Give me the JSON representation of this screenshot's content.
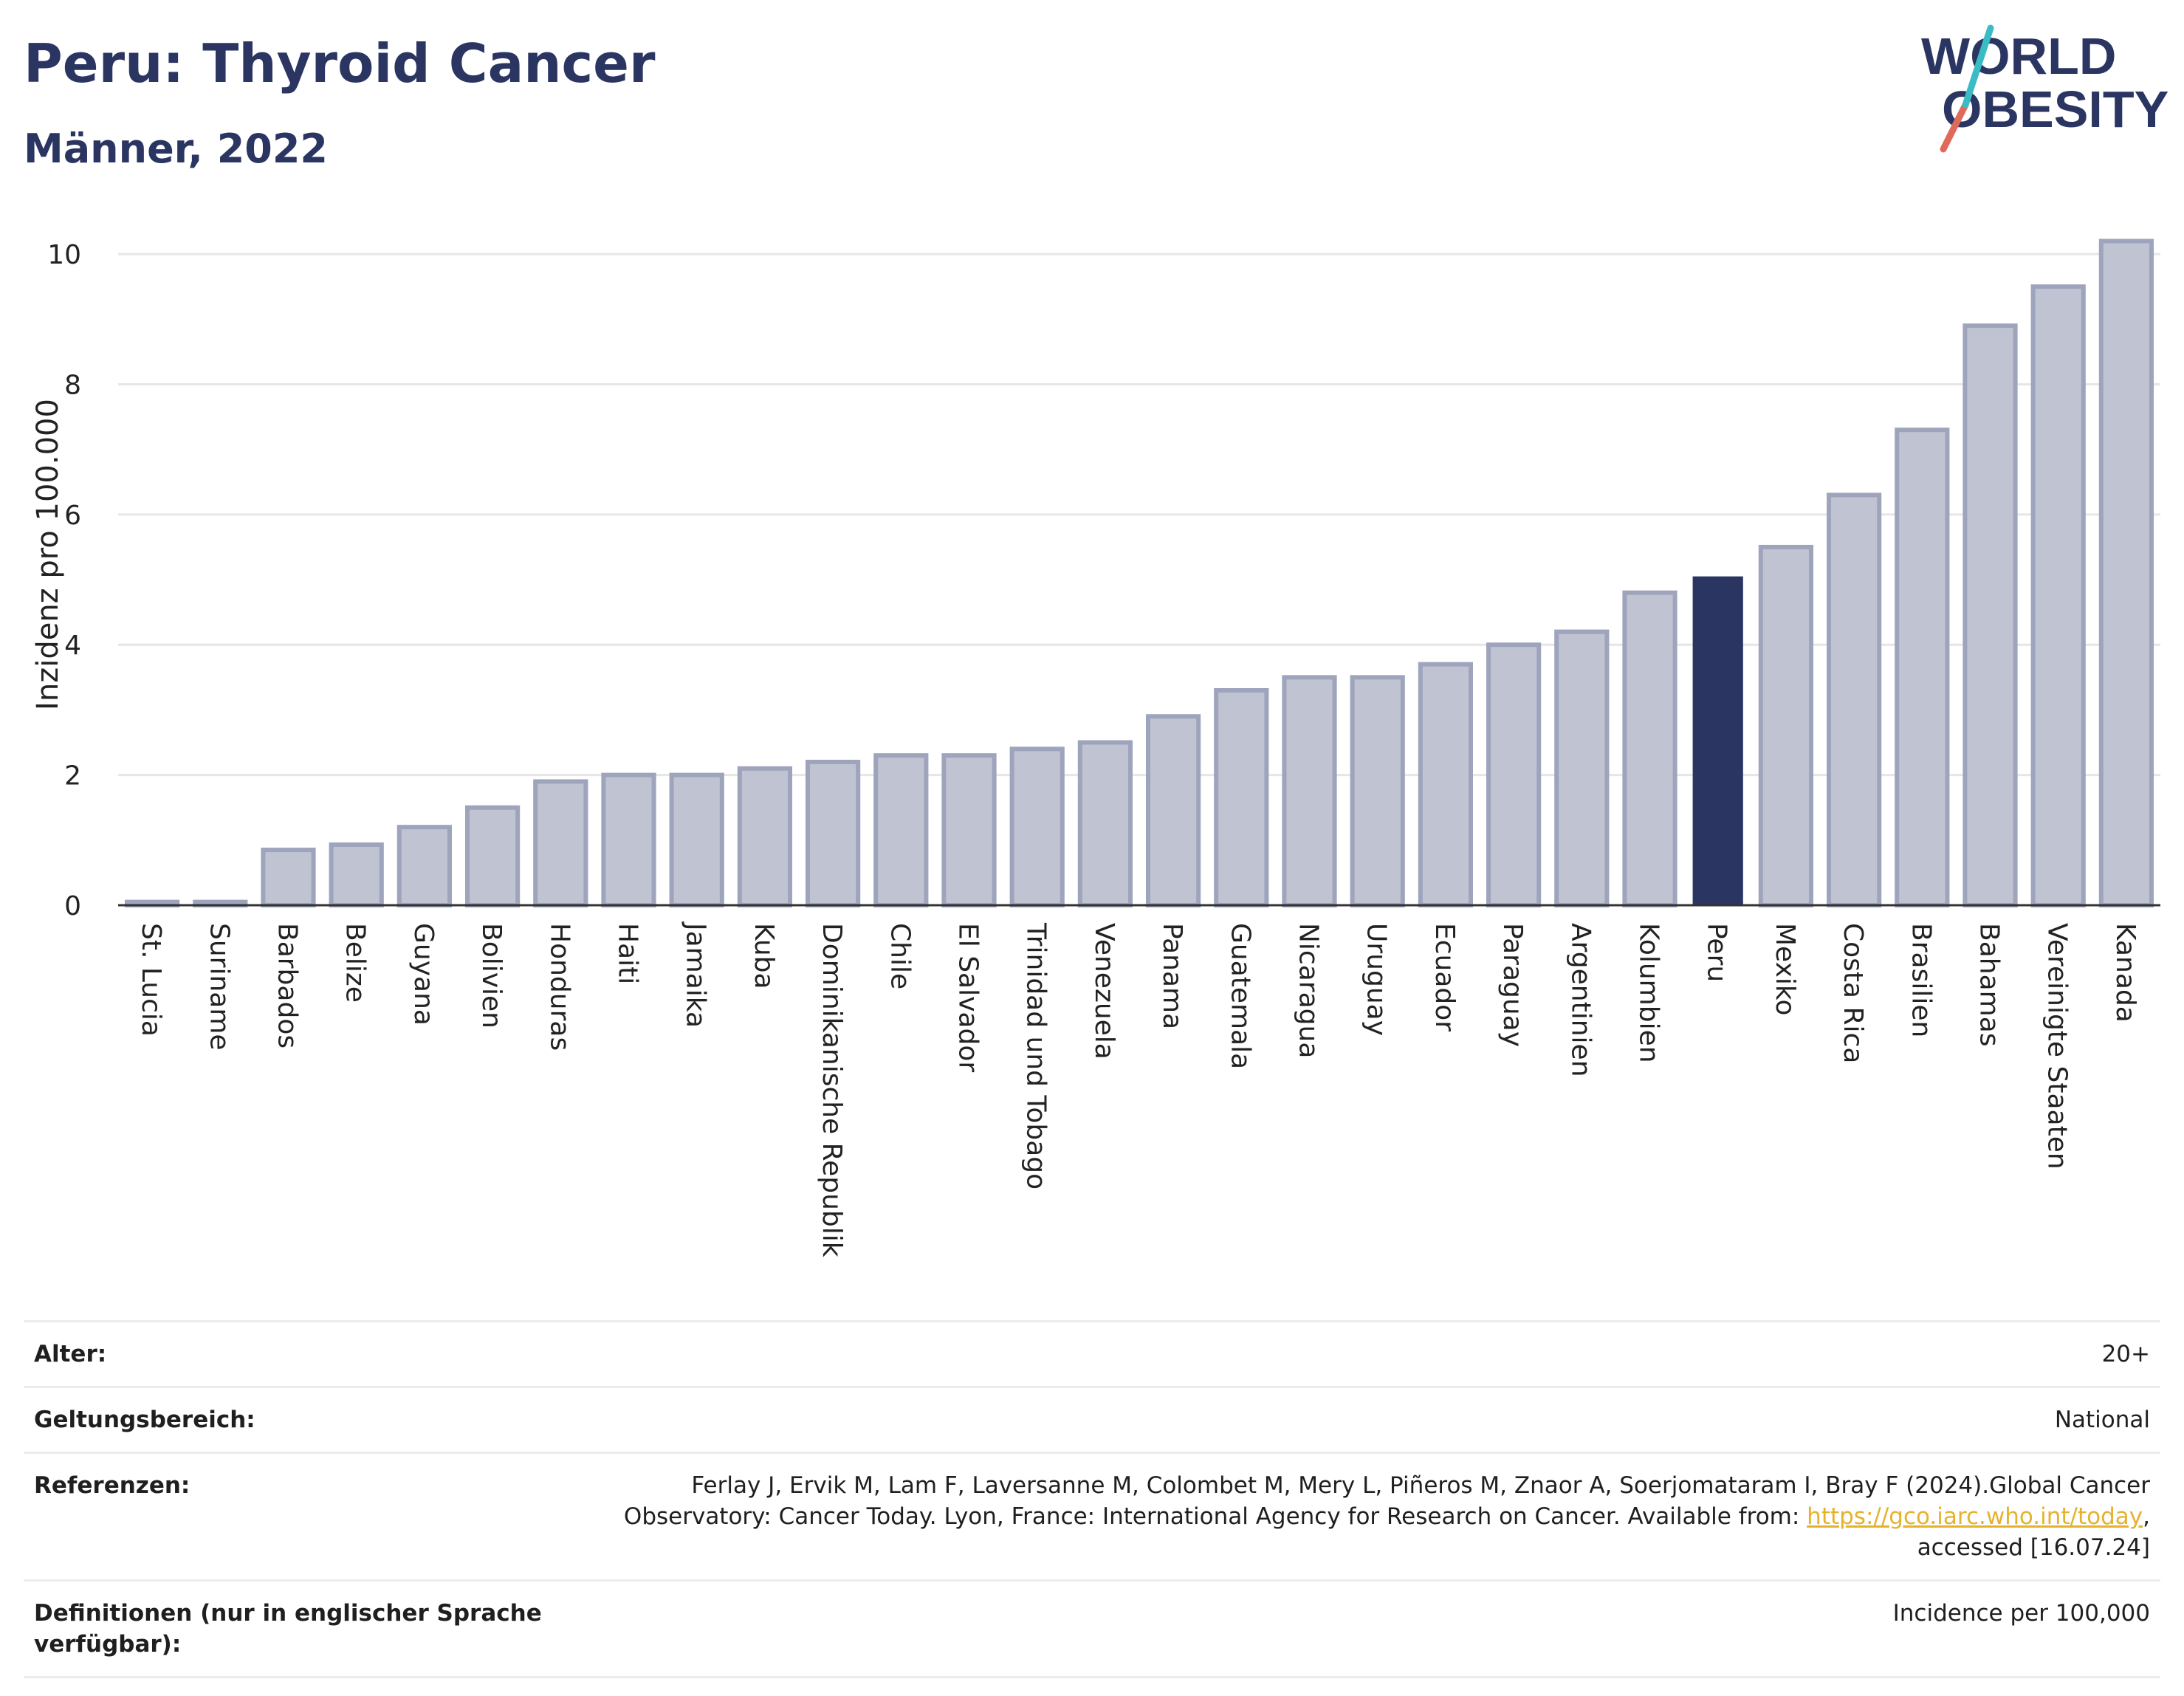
{
  "header": {
    "title": "Peru: Thyroid Cancer",
    "subtitle": "Männer, 2022"
  },
  "logo": {
    "line1": "WORLD",
    "line2": "OBESITY"
  },
  "colors": {
    "highlight": "#2b3562",
    "bar": "#c0c3d1",
    "bar_border": "#9fa4bd",
    "grid": "#e6e6e6",
    "title": "#2b3562"
  },
  "chart_data": {
    "type": "bar",
    "title": "",
    "xlabel": "",
    "ylabel": "Inzidenz pro 100.000",
    "ylim": [
      0,
      10.5
    ],
    "yticks": [
      0,
      2,
      4,
      6,
      8,
      10
    ],
    "grid": true,
    "highlight": "Peru",
    "categories": [
      "St. Lucia",
      "Suriname",
      "Barbados",
      "Belize",
      "Guyana",
      "Bolivien",
      "Honduras",
      "Haiti",
      "Jamaika",
      "Kuba",
      "Dominikanische Republik",
      "Chile",
      "El Salvador",
      "Trinidad und Tobago",
      "Venezuela",
      "Panama",
      "Guatemala",
      "Nicaragua",
      "Uruguay",
      "Ecuador",
      "Paraguay",
      "Argentinien",
      "Kolumbien",
      "Peru",
      "Mexiko",
      "Costa Rica",
      "Brasilien",
      "Bahamas",
      "Vereinigte Staaten",
      "Kanada"
    ],
    "values": [
      0.05,
      0.05,
      0.85,
      0.93,
      1.2,
      1.5,
      1.9,
      2.0,
      2.0,
      2.1,
      2.2,
      2.3,
      2.3,
      2.4,
      2.5,
      2.9,
      3.3,
      3.5,
      3.5,
      3.7,
      4.0,
      4.2,
      4.8,
      5.05,
      5.5,
      6.3,
      7.3,
      8.9,
      9.5,
      10.2
    ]
  },
  "meta": {
    "age_label": "Alter:",
    "age_value": "20+",
    "scope_label": "Geltungsbereich:",
    "scope_value": "National",
    "ref_label": "Referenzen:",
    "ref_text_1": "Ferlay J, Ervik M, Lam F, Laversanne M, Colombet M, Mery L, Piñeros M, Znaor A, Soerjomataram I, Bray F (2024).Global Cancer Observatory: Cancer Today. Lyon, France: International Agency for Research on Cancer. Available from: ",
    "ref_link": "https://gco.iarc.who.int/today",
    "ref_text_2": ", accessed [16.07.24]",
    "def_label": "Definitionen (nur in englischer Sprache verfügbar):",
    "def_value": "Incidence per 100,000"
  }
}
